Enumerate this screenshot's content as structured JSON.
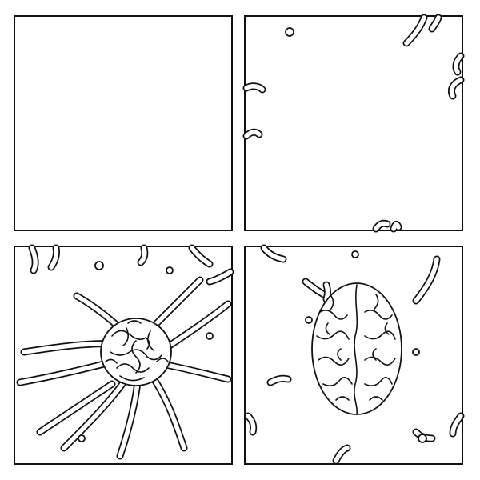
{
  "comic": {
    "panels": [
      {
        "id": "panel-1",
        "content": "empty"
      },
      {
        "id": "panel-2",
        "content": "drips-at-edges"
      },
      {
        "id": "panel-3",
        "content": "tangled-worm-mass"
      },
      {
        "id": "panel-4",
        "content": "brain"
      }
    ]
  },
  "colors": {
    "ink": "#111111",
    "paper": "#ffffff"
  }
}
